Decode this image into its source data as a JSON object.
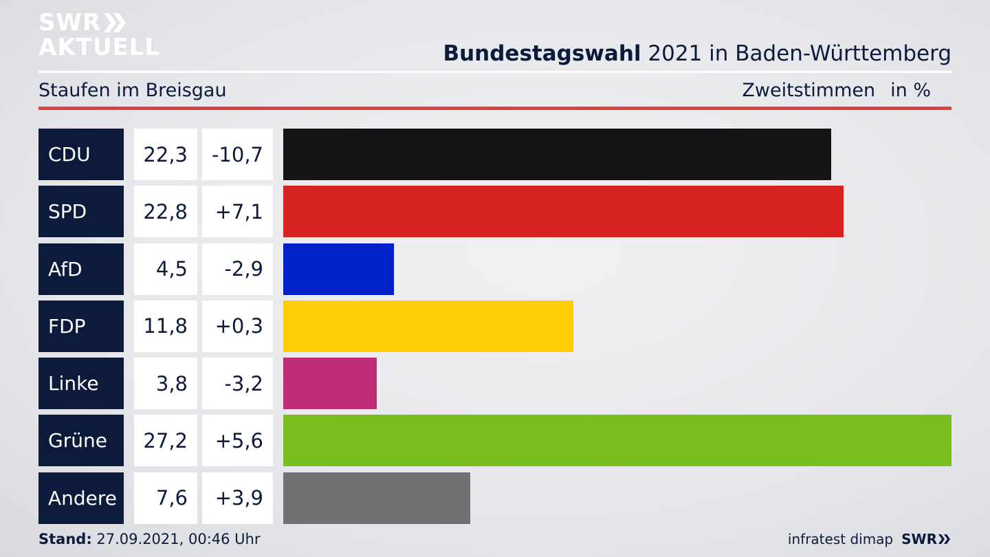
{
  "logo": {
    "line1": "SWR",
    "line2": "AKTUELL"
  },
  "header": {
    "title_bold": "Bundestagswahl",
    "title_rest": " 2021 in Baden-Württemberg",
    "location": "Staufen im Breisgau",
    "vote_type": "Zweitstimmen",
    "unit": "in %"
  },
  "chart_data": {
    "type": "bar",
    "orientation": "horizontal",
    "categories": [
      "CDU",
      "SPD",
      "AfD",
      "FDP",
      "Linke",
      "Grüne",
      "Andere"
    ],
    "values": [
      22.3,
      22.8,
      4.5,
      11.8,
      3.8,
      27.2,
      7.6
    ],
    "value_labels": [
      "22,3",
      "22,8",
      "4,5",
      "11,8",
      "3,8",
      "27,2",
      "7,6"
    ],
    "diff_labels": [
      "-10,7",
      "+7,1",
      "-2,9",
      "+0,3",
      "-3,2",
      "+5,6",
      "+3,9"
    ],
    "colors": [
      "#141414",
      "#d82121",
      "#0021c8",
      "#ffcc05",
      "#be2c73",
      "#78be1e",
      "#717173"
    ],
    "xlim": [
      0,
      27.2
    ],
    "grid": false,
    "legend": "none"
  },
  "footer": {
    "stand_label": "Stand:",
    "stand_value": " 27.09.2021, 00:46 Uhr",
    "source": "infratest dimap",
    "brand": "SWR"
  }
}
